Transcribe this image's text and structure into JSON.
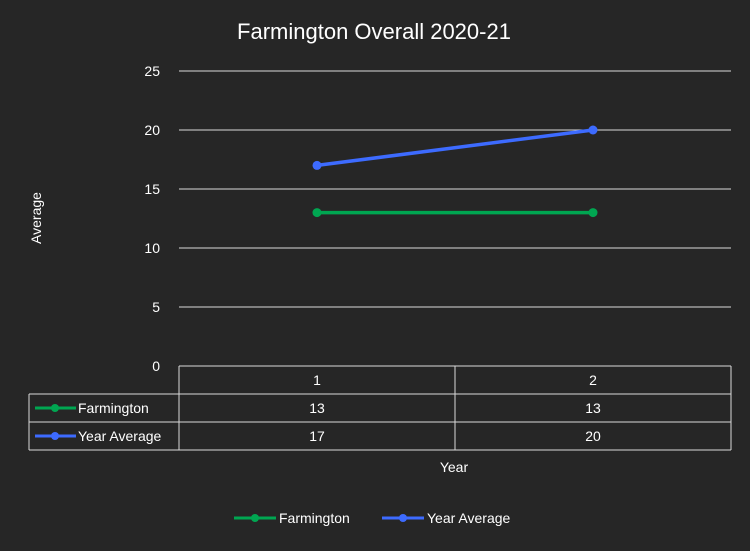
{
  "chart_data": {
    "type": "line",
    "title": "Farmington Overall 2020-21",
    "xlabel": "Year",
    "ylabel": "Average",
    "categories": [
      "1",
      "2"
    ],
    "ylim": [
      0,
      25
    ],
    "yticks": [
      0,
      5,
      10,
      15,
      20,
      25
    ],
    "grid": true,
    "legend_position": "bottom",
    "data_table": true,
    "series": [
      {
        "name": "Farmington",
        "values": [
          13,
          13
        ],
        "color": "#00A651"
      },
      {
        "name": "Year Average",
        "values": [
          17,
          20
        ],
        "color": "#3D6BFF"
      }
    ]
  }
}
